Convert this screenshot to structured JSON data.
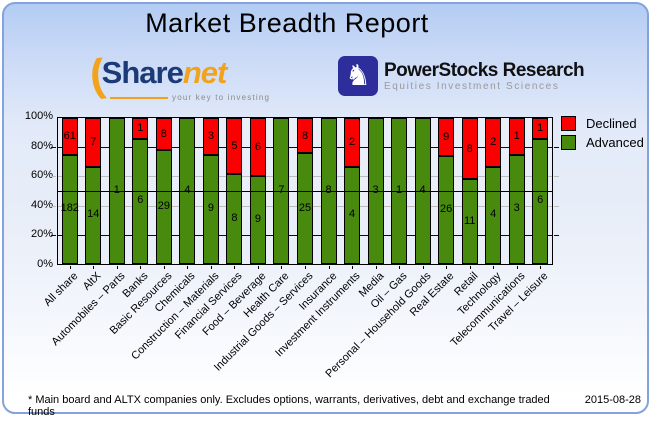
{
  "title": "Market Breadth Report",
  "logos": {
    "sharenet": {
      "part1": "Share",
      "part2": "net",
      "tagline": "your key to investing",
      "accent_color": "#f2a31d",
      "text_color": "#1c3a76"
    },
    "powerstocks": {
      "name": "PowerStocks  Research",
      "subtitle": "Equities Investment Sciences",
      "icon": "knight-chess-piece-icon",
      "icon_glyph": "♞",
      "box_color": "#2d2d9c"
    }
  },
  "legend": {
    "items": [
      {
        "label": "Declined",
        "color": "#fb0000"
      },
      {
        "label": "Advanced",
        "color": "#478a0e"
      }
    ]
  },
  "y_axis_ticks": [
    "100%",
    "80%",
    "60%",
    "40%",
    "20%",
    "0%"
  ],
  "footer": {
    "note": "* Main board and ALTX companies only. Excludes options, warrants, derivatives, debt and exchange traded funds",
    "date": "2015-08-28"
  },
  "chart_data": {
    "type": "bar",
    "stacked_percent": true,
    "title": "Market Breadth Report",
    "xlabel": "",
    "ylabel": "",
    "ylim": [
      0,
      100
    ],
    "legend_position": "top-right",
    "plot_background": "#e9eef8",
    "categories": [
      "All share",
      "AltX",
      "Automobiles – Parts",
      "Banks",
      "Basic Resources",
      "Chemicals",
      "Construction – Materials",
      "Financial Services",
      "Food – Beverage",
      "Health Care",
      "Industrial Goods – Services",
      "Insurance",
      "Investment Instruments",
      "Media",
      "Oil – Gas",
      "Personal – Household Goods",
      "Real Estate",
      "Retail",
      "Technology",
      "Telecommunications",
      "Travel – Leisure"
    ],
    "series": [
      {
        "name": "Declined",
        "color": "#fb0000",
        "values": [
          61,
          7,
          0,
          1,
          8,
          0,
          3,
          5,
          6,
          0,
          8,
          0,
          2,
          0,
          0,
          0,
          9,
          8,
          2,
          1,
          1
        ]
      },
      {
        "name": "Advanced",
        "color": "#478a0e",
        "values": [
          182,
          14,
          1,
          6,
          29,
          4,
          9,
          8,
          9,
          7,
          25,
          8,
          4,
          3,
          1,
          4,
          26,
          11,
          4,
          3,
          6
        ]
      }
    ],
    "gridlines": [
      {
        "pct": 80,
        "color": "#00007e"
      },
      {
        "pct": 60,
        "color": "#bdbdbd"
      },
      {
        "pct": 40,
        "color": "#bdbdbd"
      },
      {
        "pct": 20,
        "color": "#00007e"
      }
    ],
    "midline": {
      "pct": 50,
      "color": "#000000"
    }
  }
}
